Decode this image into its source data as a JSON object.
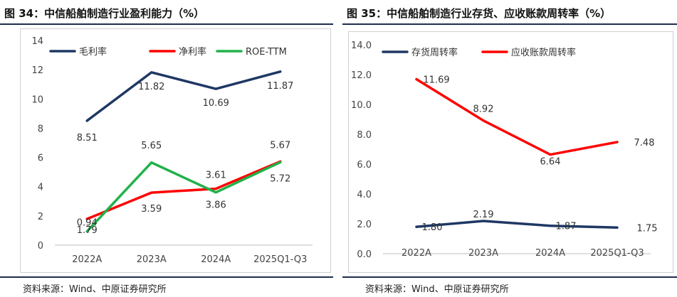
{
  "charts": [
    {
      "title": "图 34：中信船舶制造行业盈利能力（%）",
      "source": "资料来源：Wind、中原证券研究所",
      "chart_data": {
        "type": "line",
        "categories": [
          "2022A",
          "2023A",
          "2024A",
          "2025Q1-Q3"
        ],
        "ylim": [
          0,
          14
        ],
        "yticks": [
          "0",
          "2",
          "4",
          "6",
          "8",
          "10",
          "12",
          "14"
        ],
        "grid": false,
        "legend_position": "top-left",
        "series": [
          {
            "name": "毛利率",
            "color": "#1f3864",
            "values": [
              8.51,
              11.82,
              10.69,
              11.87
            ],
            "labels": [
              "8.51",
              "11.82",
              "10.69",
              "11.87"
            ]
          },
          {
            "name": "净利率",
            "color": "#ff0000",
            "values": [
              1.79,
              3.59,
              3.86,
              5.72
            ],
            "labels": [
              "1.79",
              "3.59",
              "3.86",
              "5.72"
            ]
          },
          {
            "name": "ROE-TTM",
            "color": "#21b24b",
            "values": [
              0.94,
              5.65,
              3.61,
              5.67
            ],
            "labels": [
              "0.94",
              "5.65",
              "3.61",
              "5.67"
            ]
          }
        ]
      }
    },
    {
      "title": "图 35：中信船舶制造行业存货、应收账款周转率（%）",
      "source": "资料来源：Wind、中原证券研究所",
      "chart_data": {
        "type": "line",
        "categories": [
          "2022A",
          "2023A",
          "2024A",
          "2025Q1-Q3"
        ],
        "ylim": [
          0,
          14
        ],
        "yticks": [
          "0.0",
          "2.0",
          "4.0",
          "6.0",
          "8.0",
          "10.0",
          "12.0",
          "14.0"
        ],
        "grid": false,
        "legend_position": "top-left",
        "series": [
          {
            "name": "存货周转率",
            "color": "#1f3864",
            "values": [
              1.8,
              2.19,
              1.87,
              1.75
            ],
            "labels": [
              "1.80",
              "2.19",
              "1.87",
              "1.75"
            ]
          },
          {
            "name": "应收账款周转率",
            "color": "#ff0000",
            "values": [
              11.69,
              8.92,
              6.64,
              7.48
            ],
            "labels": [
              "11.69",
              "8.92",
              "6.64",
              "7.48"
            ]
          }
        ]
      }
    }
  ]
}
